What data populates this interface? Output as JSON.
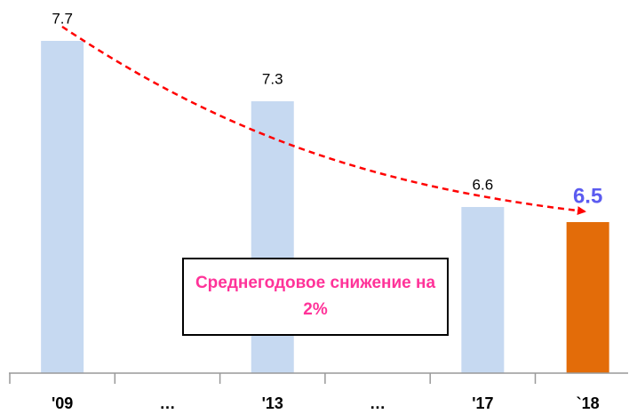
{
  "chart_data": {
    "type": "bar",
    "categories": [
      "'09",
      "…",
      "'13",
      "…",
      "'17",
      "`18"
    ],
    "values": [
      7.7,
      null,
      7.3,
      null,
      6.6,
      6.5
    ],
    "value_labels": [
      "7.7",
      null,
      "7.3",
      null,
      "6.6",
      "6.5"
    ],
    "colors": [
      "#c6d9f1",
      null,
      "#c6d9f1",
      null,
      "#c6d9f1",
      "#e36c09"
    ],
    "ylim": [
      5.5,
      8.0
    ],
    "annotation": "Среднегодовое снижение на 2%"
  }
}
